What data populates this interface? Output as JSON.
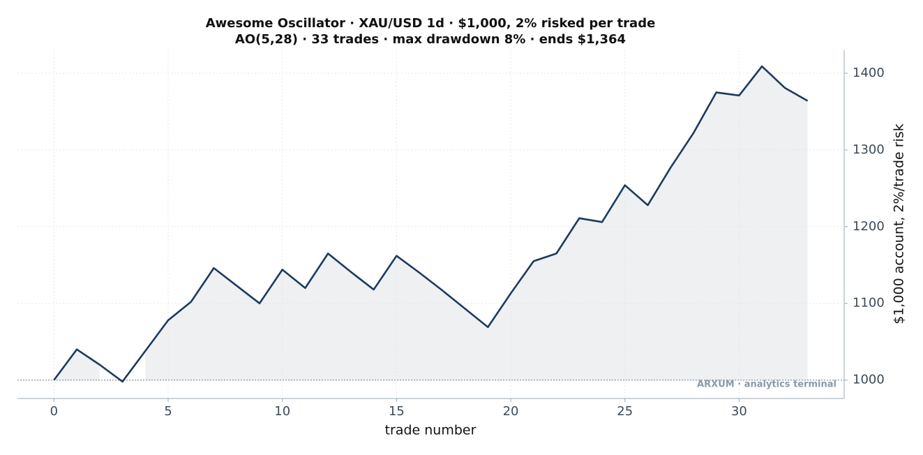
{
  "chart_data": {
    "type": "line",
    "title": "Awesome Oscillator · XAU/USD 1d · $1,000, 2% risked per trade",
    "subtitle": "AO(5,28) · 33 trades · max drawdown 8% · ends $1,364",
    "x_label": "trade number",
    "y_label": "$1,000 account, 2%/trade risk",
    "watermark": "ARXUM · analytics terminal",
    "x": [
      0,
      1,
      2,
      3,
      4,
      5,
      6,
      7,
      8,
      9,
      10,
      11,
      12,
      13,
      14,
      15,
      16,
      17,
      18,
      19,
      20,
      21,
      22,
      23,
      24,
      25,
      26,
      27,
      28,
      29,
      30,
      31,
      32,
      33
    ],
    "series": [
      {
        "name": "account",
        "color": "#1c3a5e",
        "values": [
          1000,
          1040,
          1020,
          998,
          1038,
          1078,
          1102,
          1146,
          1123,
          1100,
          1144,
          1120,
          1165,
          1141,
          1118,
          1162,
          1140,
          1117,
          1093,
          1069,
          1113,
          1155,
          1165,
          1211,
          1206,
          1254,
          1228,
          1277,
          1322,
          1375,
          1371,
          1409,
          1381,
          1364
        ]
      }
    ],
    "fill_color": "#eef0f2",
    "baseline": 1000,
    "xlim": [
      -1.6,
      34.6
    ],
    "xticks": [
      0,
      5,
      10,
      15,
      20,
      25,
      30
    ],
    "ylim": [
      976,
      1430
    ],
    "yticks": [
      1000,
      1100,
      1200,
      1300,
      1400
    ],
    "y_axis_side": "right",
    "grid": true
  }
}
